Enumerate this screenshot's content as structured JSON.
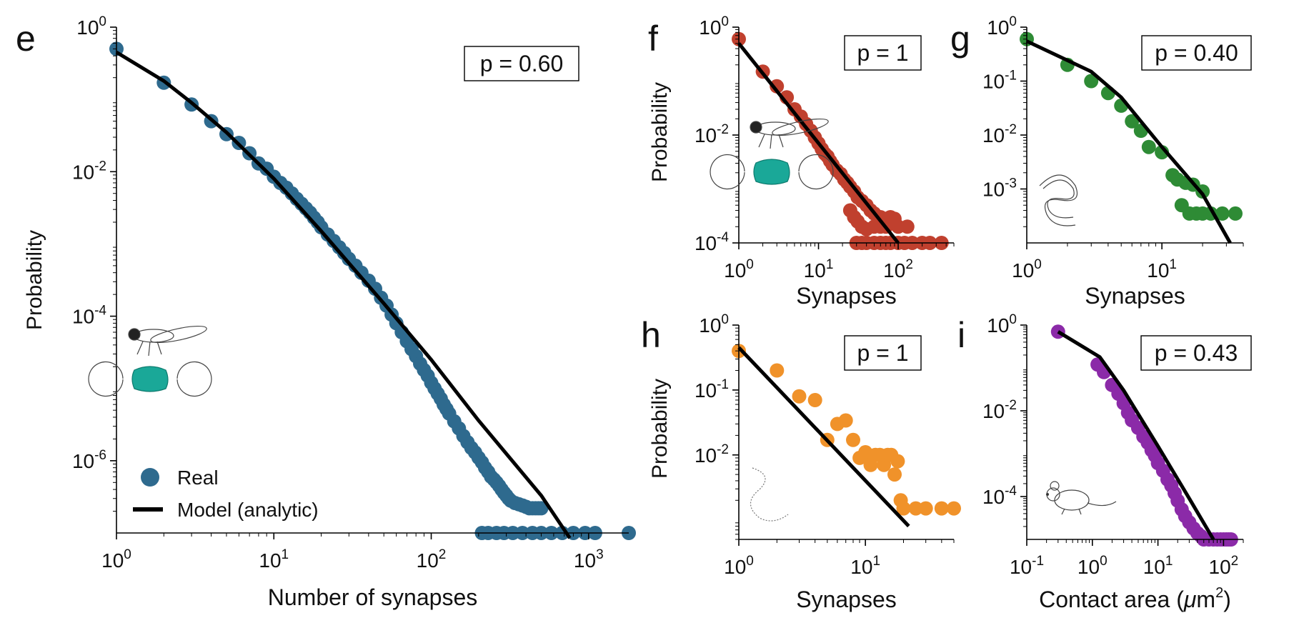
{
  "figure": {
    "panel_letters": [
      "e",
      "f",
      "g",
      "h",
      "i"
    ]
  },
  "chart_data": [
    {
      "panel": "e",
      "type": "scatter",
      "xlabel": "Number of synapses",
      "ylabel": "Probability",
      "xscale": "log",
      "yscale": "log",
      "xlim": [
        1,
        1800
      ],
      "ylim": [
        1e-07,
        1
      ],
      "xticks": [
        1,
        10,
        100,
        1000
      ],
      "xtick_labels": [
        {
          "base": "10",
          "exp": "0"
        },
        {
          "base": "10",
          "exp": "1"
        },
        {
          "base": "10",
          "exp": "2"
        },
        {
          "base": "10",
          "exp": "3"
        }
      ],
      "yticks": [
        1e-06,
        0.0001,
        0.01,
        1
      ],
      "ytick_labels": [
        {
          "base": "10",
          "exp": "-6"
        },
        {
          "base": "10",
          "exp": "-4"
        },
        {
          "base": "10",
          "exp": "-2"
        },
        {
          "base": "10",
          "exp": "0"
        }
      ],
      "stat_label": "p = 0.60",
      "legend": {
        "position": "bottom-left",
        "entries": [
          "Real",
          "Model (analytic)"
        ]
      },
      "icon": "fly-brain-icon",
      "colors": {
        "real": "#2e6a8e",
        "model": "#000000"
      },
      "series": [
        {
          "name": "Real",
          "kind": "points",
          "x": [
            1,
            2,
            3,
            4,
            5,
            6,
            7,
            8,
            9,
            10,
            11,
            12,
            13,
            14,
            15,
            16,
            17,
            18,
            19,
            20,
            22,
            24,
            26,
            28,
            30,
            33,
            36,
            40,
            44,
            48,
            52,
            56,
            60,
            65,
            70,
            75,
            80,
            85,
            90,
            95,
            100,
            105,
            110,
            115,
            120,
            125,
            130,
            140,
            150,
            160,
            170,
            180,
            190,
            200,
            210,
            220,
            230,
            240,
            250,
            260,
            270,
            280,
            290,
            300,
            310,
            320,
            340,
            360,
            380,
            400,
            420,
            440,
            460,
            480,
            500,
            210,
            230,
            260,
            290,
            330,
            380,
            440,
            500,
            580,
            680,
            800,
            950,
            1100,
            1800
          ],
          "y": [
            0.5,
            0.17,
            0.085,
            0.05,
            0.033,
            0.025,
            0.018,
            0.013,
            0.011,
            0.0085,
            0.007,
            0.006,
            0.005,
            0.0042,
            0.0036,
            0.0031,
            0.0027,
            0.0023,
            0.002,
            0.0017,
            0.00135,
            0.0011,
            0.0009,
            0.00075,
            0.00062,
            0.0005,
            0.0004,
            0.00031,
            0.00024,
            0.00018,
            0.00014,
            0.000105,
            8e-05,
            6e-05,
            4.5e-05,
            3.5e-05,
            2.8e-05,
            2.2e-05,
            1.8e-05,
            1.5e-05,
            1.2e-05,
            1e-05,
            8.5e-06,
            7.2e-06,
            6e-06,
            5.2e-06,
            4.5e-06,
            3.5e-06,
            2.8e-06,
            2.2e-06,
            1.8e-06,
            1.5e-06,
            1.3e-06,
            1.1e-06,
            9.5e-07,
            8e-07,
            7e-07,
            6e-07,
            5.5e-07,
            5e-07,
            4.5e-07,
            4e-07,
            3.6e-07,
            3.3e-07,
            3e-07,
            2.8e-07,
            2.6e-07,
            2.5e-07,
            2.4e-07,
            2.3e-07,
            2.2e-07,
            2.2e-07,
            2.2e-07,
            2.2e-07,
            2.2e-07,
            1e-07,
            1e-07,
            1e-07,
            1e-07,
            1e-07,
            1e-07,
            1e-07,
            1e-07,
            1e-07,
            1e-07,
            1e-07,
            1e-07,
            1e-07,
            1e-07
          ]
        },
        {
          "name": "Model (analytic)",
          "kind": "line",
          "x": [
            1,
            2,
            3,
            5,
            10,
            20,
            50,
            100,
            200,
            500,
            760
          ],
          "y": [
            0.45,
            0.18,
            0.09,
            0.035,
            0.008,
            0.0015,
            0.00015,
            2.5e-05,
            3.6e-06,
            3.3e-07,
            8.5e-08
          ]
        }
      ]
    },
    {
      "panel": "f",
      "type": "scatter",
      "xlabel": "Synapses",
      "ylabel": "Probability",
      "xscale": "log",
      "yscale": "log",
      "xlim": [
        1,
        500
      ],
      "ylim": [
        0.0001,
        1
      ],
      "xticks": [
        1,
        10,
        100
      ],
      "xtick_labels": [
        {
          "base": "10",
          "exp": "0"
        },
        {
          "base": "10",
          "exp": "1"
        },
        {
          "base": "10",
          "exp": "2"
        }
      ],
      "yticks": [
        0.0001,
        0.01,
        1
      ],
      "ytick_labels": [
        {
          "base": "10",
          "exp": "-4"
        },
        {
          "base": "10",
          "exp": "-2"
        },
        {
          "base": "10",
          "exp": "0"
        }
      ],
      "stat_label": "p = 1",
      "icon": "fly-brain-icon",
      "colors": {
        "real": "#c0402e",
        "model": "#000000"
      },
      "series": [
        {
          "kind": "points",
          "x": [
            1,
            2,
            3,
            4,
            5,
            6,
            7,
            8,
            9,
            10,
            11,
            12,
            13,
            14,
            15,
            17,
            19,
            21,
            23,
            25,
            28,
            31,
            35,
            40,
            45,
            50,
            60,
            70,
            80,
            90,
            25,
            28,
            31,
            35,
            40,
            50,
            60,
            70,
            100,
            130,
            30,
            35,
            40,
            50,
            60,
            70,
            80,
            100,
            120,
            150,
            200,
            250,
            350
          ],
          "y": [
            0.6,
            0.15,
            0.08,
            0.05,
            0.03,
            0.022,
            0.016,
            0.012,
            0.009,
            0.007,
            0.0055,
            0.0045,
            0.004,
            0.0033,
            0.0028,
            0.0022,
            0.0019,
            0.0015,
            0.0013,
            0.0011,
            0.0009,
            0.0007,
            0.0006,
            0.0005,
            0.0004,
            0.00035,
            0.0003,
            0.00028,
            0.0003,
            0.00028,
            0.0004,
            0.0003,
            0.00025,
            0.0002,
            0.00018,
            0.0002,
            0.0002,
            0.0002,
            0.0002,
            0.0002,
            0.0001,
            0.0001,
            0.0001,
            0.0001,
            0.0001,
            0.0001,
            0.0001,
            0.0001,
            0.0001,
            0.0001,
            0.0001,
            0.0001,
            0.0001
          ]
        },
        {
          "kind": "line",
          "x": [
            1,
            100
          ],
          "y": [
            0.5,
            0.0001
          ]
        }
      ]
    },
    {
      "panel": "g",
      "type": "scatter",
      "xlabel": "Synapses",
      "ylabel": "",
      "xscale": "log",
      "yscale": "log",
      "xlim": [
        1,
        40
      ],
      "ylim": [
        0.0001,
        1
      ],
      "xticks": [
        1,
        10
      ],
      "xtick_labels": [
        {
          "base": "10",
          "exp": "0"
        },
        {
          "base": "10",
          "exp": "1"
        }
      ],
      "yticks": [
        0.001,
        0.01,
        0.1,
        1
      ],
      "ytick_labels": [
        {
          "base": "10",
          "exp": "-3"
        },
        {
          "base": "10",
          "exp": "-2"
        },
        {
          "base": "10",
          "exp": "-1"
        },
        {
          "base": "10",
          "exp": "0"
        }
      ],
      "stat_label": "p = 0.40",
      "icon": "worm-icon",
      "colors": {
        "real": "#2e8b35",
        "model": "#000000"
      },
      "series": [
        {
          "kind": "points",
          "x": [
            1,
            2,
            3,
            4,
            5,
            6,
            7,
            8,
            10,
            12,
            13,
            15,
            17,
            20,
            14,
            16,
            18,
            20,
            23,
            28,
            35
          ],
          "y": [
            0.6,
            0.2,
            0.1,
            0.06,
            0.035,
            0.018,
            0.012,
            0.006,
            0.0048,
            0.0018,
            0.0015,
            0.0013,
            0.0012,
            0.0009,
            0.0005,
            0.00035,
            0.00035,
            0.00035,
            0.00035,
            0.00035,
            0.00035
          ]
        },
        {
          "kind": "line",
          "x": [
            1,
            3,
            5,
            10,
            20,
            32
          ],
          "y": [
            0.55,
            0.15,
            0.05,
            0.006,
            0.0008,
            0.0001
          ]
        }
      ]
    },
    {
      "panel": "h",
      "type": "scatter",
      "xlabel": "Synapses",
      "ylabel": "Probability",
      "xscale": "log",
      "yscale": "log",
      "xlim": [
        1,
        50
      ],
      "ylim": [
        0.0005,
        1
      ],
      "xticks": [
        1,
        10
      ],
      "xtick_labels": [
        {
          "base": "10",
          "exp": "0"
        },
        {
          "base": "10",
          "exp": "1"
        }
      ],
      "yticks": [
        0.01,
        0.1,
        1
      ],
      "ytick_labels": [
        {
          "base": "10",
          "exp": "-2"
        },
        {
          "base": "10",
          "exp": "-1"
        },
        {
          "base": "10",
          "exp": "0"
        }
      ],
      "stat_label": "p = 1",
      "icon": "larva-icon",
      "colors": {
        "real": "#f0922a",
        "model": "#000000"
      },
      "series": [
        {
          "kind": "points",
          "x": [
            1,
            2,
            3,
            4,
            5,
            6,
            7,
            8,
            9,
            10,
            11,
            12,
            13,
            14,
            15,
            16,
            17,
            18,
            19,
            20,
            25,
            30,
            40,
            50
          ],
          "y": [
            0.4,
            0.2,
            0.08,
            0.07,
            0.017,
            0.03,
            0.034,
            0.017,
            0.009,
            0.011,
            0.007,
            0.01,
            0.01,
            0.007,
            0.01,
            0.01,
            0.005,
            0.008,
            0.002,
            0.0015,
            0.0015,
            0.0015,
            0.0015,
            0.0015
          ]
        },
        {
          "kind": "line",
          "x": [
            1,
            22
          ],
          "y": [
            0.45,
            0.0008
          ]
        }
      ]
    },
    {
      "panel": "i",
      "type": "scatter",
      "xlabel": "Contact area (μm²)",
      "xlabel_parts": {
        "text": "Contact area (",
        "mu": "μ",
        "unit": "m",
        "power": "2",
        "close": ")"
      },
      "ylabel": "",
      "xscale": "log",
      "yscale": "log",
      "xlim": [
        0.1,
        200
      ],
      "ylim": [
        1e-05,
        1
      ],
      "xticks": [
        0.1,
        1,
        10,
        100
      ],
      "xtick_labels": [
        {
          "base": "10",
          "exp": "-1"
        },
        {
          "base": "10",
          "exp": "0"
        },
        {
          "base": "10",
          "exp": "1"
        },
        {
          "base": "10",
          "exp": "2"
        }
      ],
      "yticks": [
        0.0001,
        0.01,
        1
      ],
      "ytick_labels": [
        {
          "base": "10",
          "exp": "-4"
        },
        {
          "base": "10",
          "exp": "-2"
        },
        {
          "base": "10",
          "exp": "0"
        }
      ],
      "stat_label": "p = 0.43",
      "icon": "mouse-icon",
      "colors": {
        "real": "#8b2aa8",
        "model": "#000000"
      },
      "series": [
        {
          "kind": "points",
          "x": [
            0.3,
            1.2,
            1.5,
            2,
            2.5,
            3,
            3.5,
            4,
            5,
            6,
            7,
            8,
            9,
            10,
            12,
            14,
            16,
            18,
            20,
            23,
            26,
            30,
            35,
            40,
            45,
            50,
            60,
            70,
            80,
            90,
            100,
            110,
            120,
            130
          ],
          "y": [
            0.7,
            0.12,
            0.08,
            0.04,
            0.025,
            0.015,
            0.009,
            0.006,
            0.004,
            0.0025,
            0.0018,
            0.0012,
            0.0009,
            0.0006,
            0.0004,
            0.00025,
            0.00018,
            0.00012,
            8e-05,
            5e-05,
            3.5e-05,
            2.5e-05,
            1.8e-05,
            1.4e-05,
            1.2e-05,
            1e-05,
            1e-05,
            1e-05,
            1e-05,
            1e-05,
            1e-05,
            1e-05,
            1e-05,
            1e-05
          ]
        },
        {
          "kind": "line",
          "x": [
            0.3,
            1.3,
            3,
            10,
            30,
            70
          ],
          "y": [
            0.7,
            0.18,
            0.03,
            0.0015,
            9e-05,
            1e-05
          ]
        }
      ]
    }
  ]
}
